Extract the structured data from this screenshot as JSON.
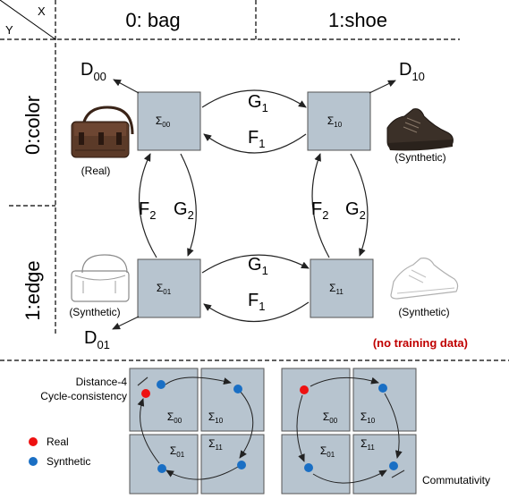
{
  "corner": {
    "x_label": "X",
    "y_label": "Y"
  },
  "columns": {
    "col0": "0: bag",
    "col1": "1:shoe"
  },
  "rows": {
    "row0": "0:color",
    "row1": "1:edge"
  },
  "nodes": {
    "s00": {
      "main": "Σ",
      "sub": "00"
    },
    "s10": {
      "main": "Σ",
      "sub": "10"
    },
    "s01": {
      "main": "Σ",
      "sub": "01"
    },
    "s11": {
      "main": "Σ",
      "sub": "11"
    }
  },
  "discriminators": {
    "d00": {
      "main": "D",
      "sub": "00"
    },
    "d10": {
      "main": "D",
      "sub": "10"
    },
    "d01": {
      "main": "D",
      "sub": "01"
    }
  },
  "mappings": {
    "g1_top": {
      "main": "G",
      "sub": "1"
    },
    "f1_top": {
      "main": "F",
      "sub": "1"
    },
    "g1_bottom": {
      "main": "G",
      "sub": "1"
    },
    "f1_bottom": {
      "main": "F",
      "sub": "1"
    },
    "f2_left": {
      "main": "F",
      "sub": "2"
    },
    "g2_left": {
      "main": "G",
      "sub": "2"
    },
    "f2_right": {
      "main": "F",
      "sub": "2"
    },
    "g2_right": {
      "main": "G",
      "sub": "2"
    }
  },
  "image_captions": {
    "bag_color": "(Real)",
    "shoe_color": "(Synthetic)",
    "bag_edge": "(Synthetic)",
    "shoe_edge": "(Synthetic)"
  },
  "note": {
    "text": "(no training data)",
    "color": "#c00000"
  },
  "bottom": {
    "label_distance": "Distance-4",
    "label_cycle": "Cycle-consistency",
    "label_commutativity": "Commutativity",
    "legend_real": "Real",
    "legend_synthetic": "Synthetic",
    "mini_left": {
      "s00": {
        "main": "Σ",
        "sub": "00"
      },
      "s10": {
        "main": "Σ",
        "sub": "10"
      },
      "s01": {
        "main": "Σ",
        "sub": "01"
      },
      "s11": {
        "main": "Σ",
        "sub": "11"
      }
    },
    "mini_right": {
      "s00": {
        "main": "Σ",
        "sub": "00"
      },
      "s10": {
        "main": "Σ",
        "sub": "10"
      },
      "s01": {
        "main": "Σ",
        "sub": "01"
      },
      "s11": {
        "main": "Σ",
        "sub": "11"
      }
    }
  },
  "colors": {
    "box_fill": "#b7c4cf",
    "real_dot": "#ee1111",
    "synthetic_dot": "#1a6fc4",
    "note_red": "#c00000"
  },
  "icons": {
    "bag_color": "leather-bag-photo",
    "shoe_color": "dark-shoe-photo",
    "bag_edge": "bag-edge-sketch",
    "shoe_edge": "shoe-edge-sketch"
  }
}
